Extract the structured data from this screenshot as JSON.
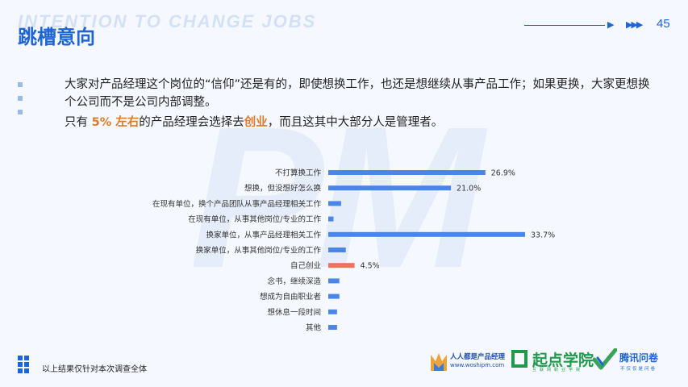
{
  "header": {
    "bg_text": "INTENTION TO CHANGE JOBS",
    "title": "跳槽意向",
    "page_number": "45",
    "watermark": "PM"
  },
  "body": {
    "line1": "大家对产品经理这个岗位的“信仰”还是有的，即使想换工作，也还是想继续从事产品工作；如果更换，大家更想换个公司而不是公司内部调整。",
    "line2_pre": "只有",
    "line2_hl1": "5% 左右",
    "line2_mid": "的产品经理会选择去",
    "line2_hl2": "创业",
    "line2_post": "，而且这其中大部分人是管理者。"
  },
  "chart_data": {
    "type": "bar",
    "orientation": "horizontal",
    "categories": [
      "不打算换工作",
      "想换，但没想好怎么换",
      "在现有单位，换个产品团队从事产品经理相关工作",
      "在现有单位，从事其他岗位/专业的工作",
      "换家单位，从事产品经理相关工作",
      "换家单位，从事其他岗位/专业的工作",
      "自己创业",
      "念书，继续深造",
      "想成为自由职业者",
      "想休息一段时间",
      "其他"
    ],
    "values": [
      26.9,
      21.0,
      2.2,
      0.9,
      33.7,
      3.0,
      4.5,
      1.9,
      1.9,
      1.5,
      1.5
    ],
    "value_labels": [
      "26.9%",
      "21.0%",
      "",
      "",
      "33.7%",
      "",
      "4.5%",
      "",
      "",
      "",
      ""
    ],
    "highlight_index": 6,
    "colors": {
      "bar": "#4a86e8",
      "highlight": "#f0725a"
    }
  },
  "footer": {
    "note": "以上结果仅针对本次调查全体",
    "logo1_title": "人人都是产品经理",
    "logo1_url": "www.woshipm.com",
    "logo2_title": "起点学院",
    "logo2_sub": "互联网职业学院",
    "logo3_title": "腾讯问卷",
    "logo3_sub": "不仅仅是问卷"
  }
}
